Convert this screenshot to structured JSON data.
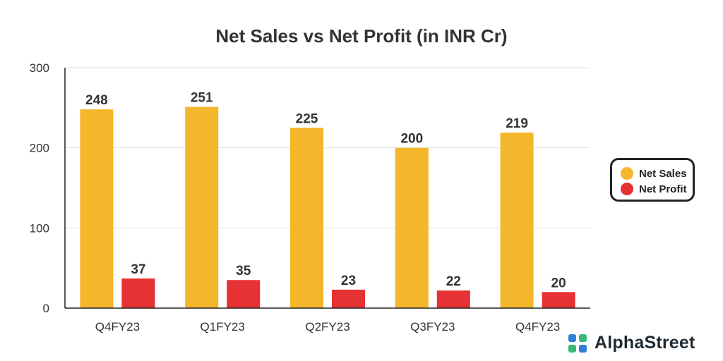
{
  "chart_data": {
    "type": "bar",
    "title": "Net Sales vs Net Profit (in INR Cr)",
    "categories": [
      "Q4FY23",
      "Q1FY23",
      "Q2FY23",
      "Q3FY23",
      "Q4FY23"
    ],
    "series": [
      {
        "name": "Net Sales",
        "values": [
          248,
          251,
          225,
          200,
          219
        ],
        "color": "#F4B72B"
      },
      {
        "name": "Net Profit",
        "values": [
          37,
          35,
          23,
          22,
          20
        ],
        "color": "#E63135"
      }
    ],
    "ylim": [
      0,
      300
    ],
    "yticks": [
      0,
      100,
      200,
      300
    ],
    "xlabel": "",
    "ylabel": "",
    "grid": true,
    "legend_position": "right"
  },
  "brand": {
    "name": "AlphaStreet",
    "logo_colors": [
      "#2F7FD8",
      "#3CB878"
    ]
  }
}
